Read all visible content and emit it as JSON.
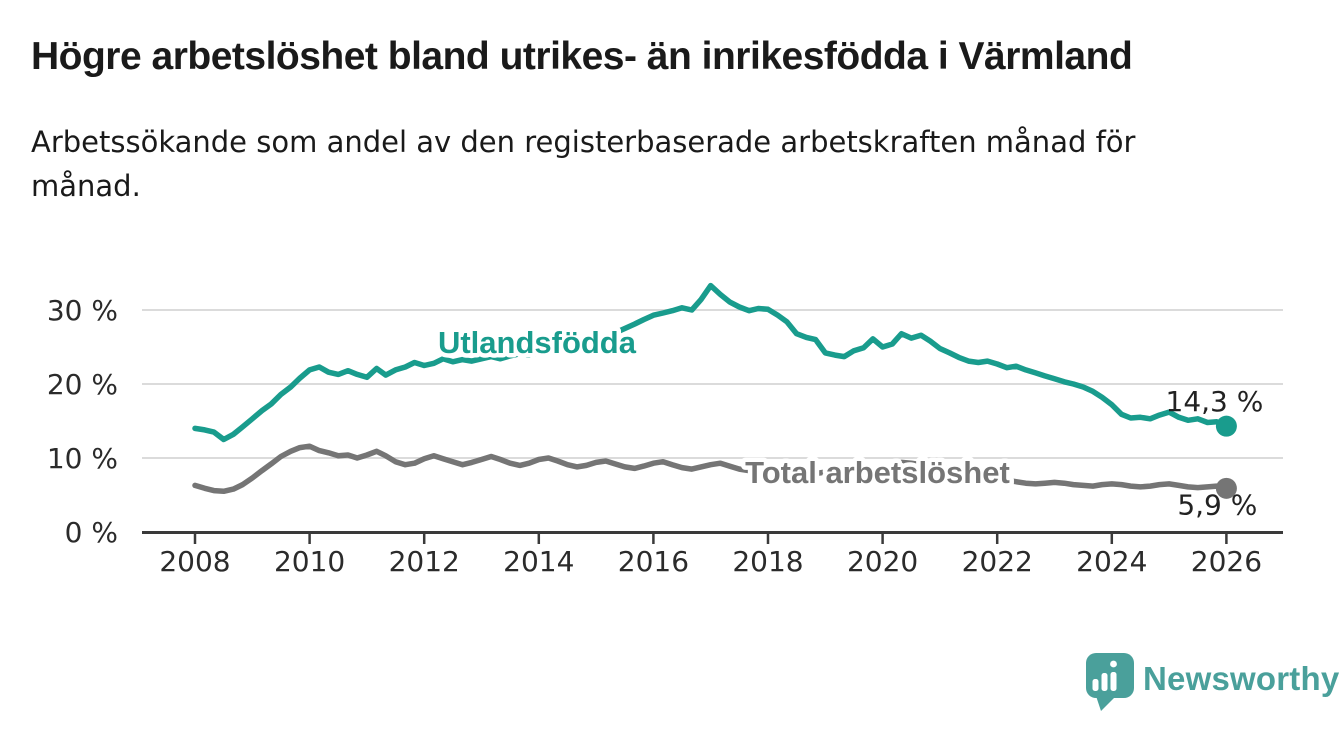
{
  "header": {
    "title": "Högre arbetslöshet bland utrikes- än inrikesfödda i Värmland",
    "subtitle": "Arbetssökande som andel av den registerbaserade arbetskraften månad för månad."
  },
  "footer": {
    "brand": "Newsworthy"
  },
  "colors": {
    "teal": "#199c8d",
    "gray": "#757575",
    "logo_teal": "#4aa09b",
    "headline": "#1a1a1a",
    "axis": "#3a3a3a",
    "tick_label": "#2b2b2b",
    "gridline": "#dbdbdb",
    "value_label": "#222222",
    "background": "#ffffff"
  },
  "chart_data": {
    "type": "line",
    "title": "Högre arbetslöshet bland utrikes- än inrikesfödda i Värmland",
    "subtitle": "Arbetssökande som andel av den registerbaserade arbetskraften månad för månad.",
    "unit": "%",
    "grid": "horizontal",
    "legend_position": "inline-labels",
    "x_axis": {
      "ticks": [
        2008,
        2010,
        2012,
        2014,
        2016,
        2018,
        2020,
        2022,
        2024,
        2026
      ],
      "range": [
        2007.1,
        2026.9
      ]
    },
    "y_axis": {
      "ticks": [
        {
          "value": 0,
          "label": "0 %"
        },
        {
          "value": 10,
          "label": "10 %"
        },
        {
          "value": 20,
          "label": "20 %"
        },
        {
          "value": 30,
          "label": "30 %"
        }
      ],
      "range": [
        0,
        35
      ]
    },
    "x": [
      2008,
      2008.17,
      2008.33,
      2008.5,
      2008.67,
      2008.83,
      2009,
      2009.17,
      2009.33,
      2009.5,
      2009.67,
      2009.83,
      2010,
      2010.17,
      2010.33,
      2010.5,
      2010.67,
      2010.83,
      2011,
      2011.17,
      2011.33,
      2011.5,
      2011.67,
      2011.83,
      2012,
      2012.17,
      2012.33,
      2012.5,
      2012.67,
      2012.83,
      2013,
      2013.17,
      2013.33,
      2013.5,
      2013.67,
      2013.83,
      2014,
      2014.17,
      2014.33,
      2014.5,
      2014.67,
      2014.83,
      2015,
      2015.17,
      2015.33,
      2015.5,
      2015.67,
      2015.83,
      2016,
      2016.17,
      2016.33,
      2016.5,
      2016.67,
      2016.83,
      2017,
      2017.17,
      2017.33,
      2017.5,
      2017.67,
      2017.83,
      2018,
      2018.17,
      2018.33,
      2018.5,
      2018.67,
      2018.83,
      2019,
      2019.17,
      2019.33,
      2019.5,
      2019.67,
      2019.83,
      2020,
      2020.17,
      2020.33,
      2020.5,
      2020.67,
      2020.83,
      2021,
      2021.17,
      2021.33,
      2021.5,
      2021.67,
      2021.83,
      2022,
      2022.17,
      2022.33,
      2022.5,
      2022.67,
      2022.83,
      2023,
      2023.17,
      2023.33,
      2023.5,
      2023.67,
      2023.83,
      2024,
      2024.17,
      2024.33,
      2024.5,
      2024.67,
      2024.83,
      2025,
      2025.17,
      2025.33,
      2025.5,
      2025.67,
      2025.83,
      2026
    ],
    "series": [
      {
        "id": "utlandsfodda",
        "name": "Utlandsfödda",
        "color": "#199c8d",
        "label": {
          "x": 2012.24,
          "y": 24.2
        },
        "end_label": "14,3 %",
        "end_label_pos": "above",
        "values": [
          14.0,
          13.8,
          13.5,
          12.5,
          13.2,
          14.2,
          15.3,
          16.4,
          17.3,
          18.6,
          19.6,
          20.8,
          21.9,
          22.3,
          21.6,
          21.3,
          21.8,
          21.3,
          20.9,
          22.1,
          21.2,
          21.9,
          22.3,
          22.9,
          22.5,
          22.8,
          23.4,
          23.0,
          23.3,
          23.1,
          23.4,
          23.7,
          23.4,
          23.8,
          24.1,
          23.9,
          24.3,
          24.6,
          24.3,
          24.7,
          25.1,
          25.5,
          26.0,
          26.4,
          26.9,
          27.5,
          28.1,
          28.7,
          29.3,
          29.6,
          29.9,
          30.3,
          30.0,
          31.4,
          33.3,
          32.1,
          31.1,
          30.4,
          29.9,
          30.2,
          30.1,
          29.3,
          28.4,
          26.8,
          26.3,
          26.0,
          24.2,
          23.9,
          23.7,
          24.5,
          24.9,
          26.1,
          25.0,
          25.4,
          26.8,
          26.2,
          26.6,
          25.8,
          24.8,
          24.2,
          23.6,
          23.1,
          22.9,
          23.1,
          22.7,
          22.2,
          22.4,
          21.9,
          21.5,
          21.1,
          20.7,
          20.3,
          20.0,
          19.6,
          19.0,
          18.2,
          17.2,
          15.9,
          15.4,
          15.5,
          15.3,
          15.8,
          16.2,
          15.5,
          15.1,
          15.3,
          14.8,
          14.9,
          14.3
        ]
      },
      {
        "id": "total",
        "name": "Total arbetslöshet",
        "color": "#757575",
        "label": {
          "x": 2017.6,
          "y": 6.6
        },
        "end_label": "5,9 %",
        "end_label_pos": "below",
        "values": [
          6.3,
          5.9,
          5.6,
          5.5,
          5.8,
          6.4,
          7.3,
          8.3,
          9.2,
          10.2,
          10.9,
          11.4,
          11.6,
          11.0,
          10.7,
          10.3,
          10.4,
          10.0,
          10.4,
          10.9,
          10.3,
          9.5,
          9.1,
          9.3,
          9.9,
          10.3,
          9.9,
          9.5,
          9.1,
          9.4,
          9.8,
          10.2,
          9.8,
          9.3,
          9.0,
          9.3,
          9.8,
          10.0,
          9.6,
          9.1,
          8.8,
          9.0,
          9.4,
          9.6,
          9.2,
          8.8,
          8.6,
          8.9,
          9.3,
          9.5,
          9.1,
          8.7,
          8.5,
          8.8,
          9.1,
          9.3,
          8.9,
          8.5,
          8.3,
          8.6,
          8.8,
          8.6,
          8.2,
          7.9,
          7.7,
          7.9,
          8.1,
          8.2,
          7.9,
          7.7,
          7.8,
          8.0,
          8.3,
          8.8,
          9.4,
          9.3,
          9.1,
          8.9,
          8.8,
          8.6,
          8.2,
          7.8,
          7.5,
          7.3,
          7.2,
          7.0,
          6.8,
          6.6,
          6.5,
          6.6,
          6.7,
          6.6,
          6.4,
          6.3,
          6.2,
          6.4,
          6.5,
          6.4,
          6.2,
          6.1,
          6.2,
          6.4,
          6.5,
          6.3,
          6.1,
          6.0,
          6.1,
          6.2,
          5.9
        ]
      }
    ]
  }
}
